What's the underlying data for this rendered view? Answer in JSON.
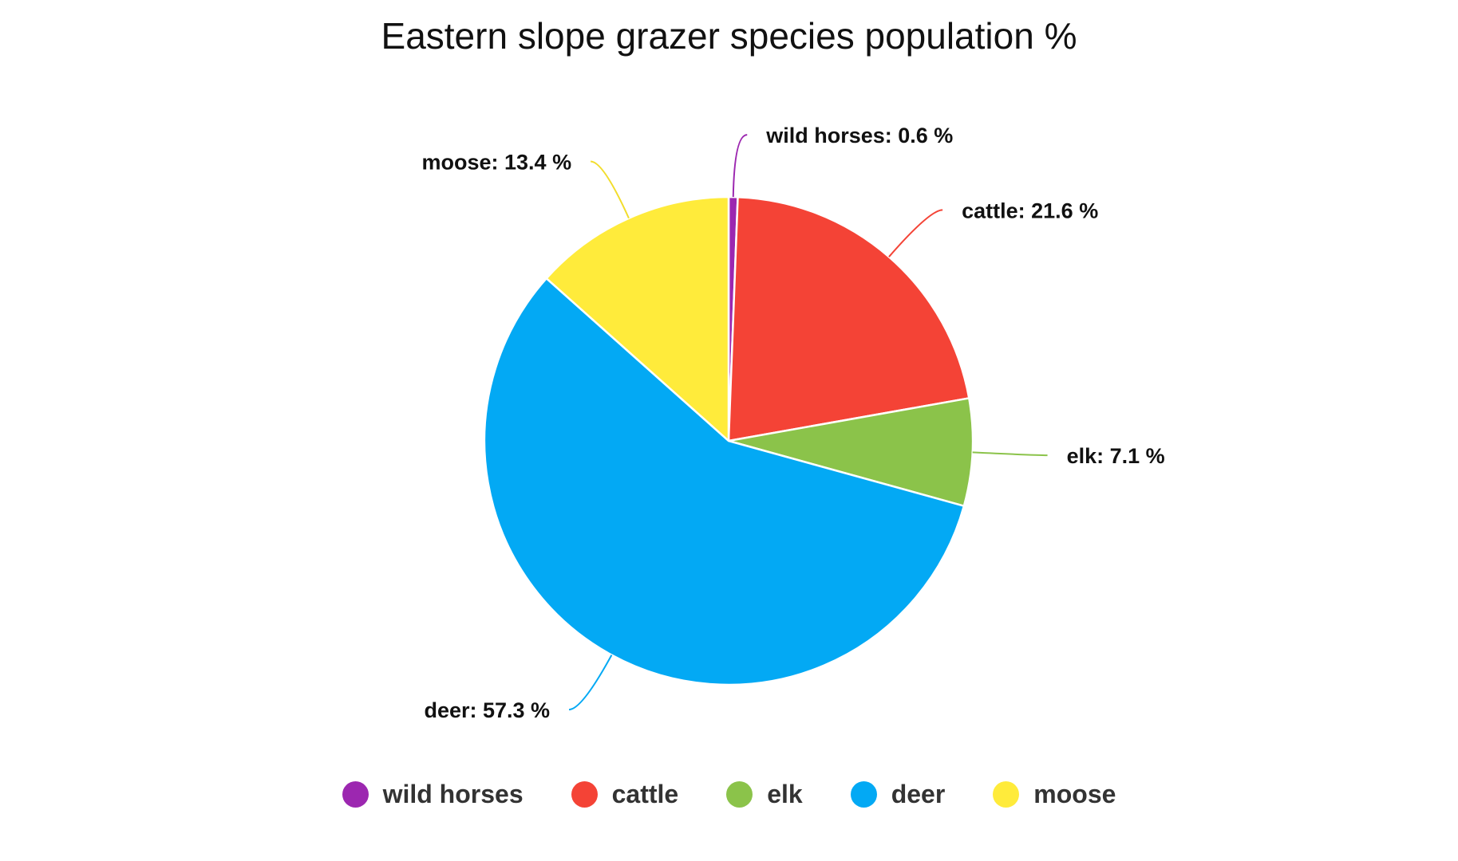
{
  "chart_data": {
    "type": "pie",
    "title": "Eastern slope grazer species population %",
    "categories": [
      "wild horses",
      "cattle",
      "elk",
      "deer",
      "moose"
    ],
    "values": [
      0.6,
      21.6,
      7.1,
      57.3,
      13.4
    ],
    "labels": [
      "wild horses: 0.6 %",
      "cattle: 21.6 %",
      "elk: 7.1 %",
      "deer: 57.3 %",
      "moose: 13.4 %"
    ],
    "colors": [
      "#9c27b0",
      "#f44336",
      "#8bc34a",
      "#03a9f4",
      "#ffeb3b"
    ],
    "legend_position": "bottom"
  }
}
